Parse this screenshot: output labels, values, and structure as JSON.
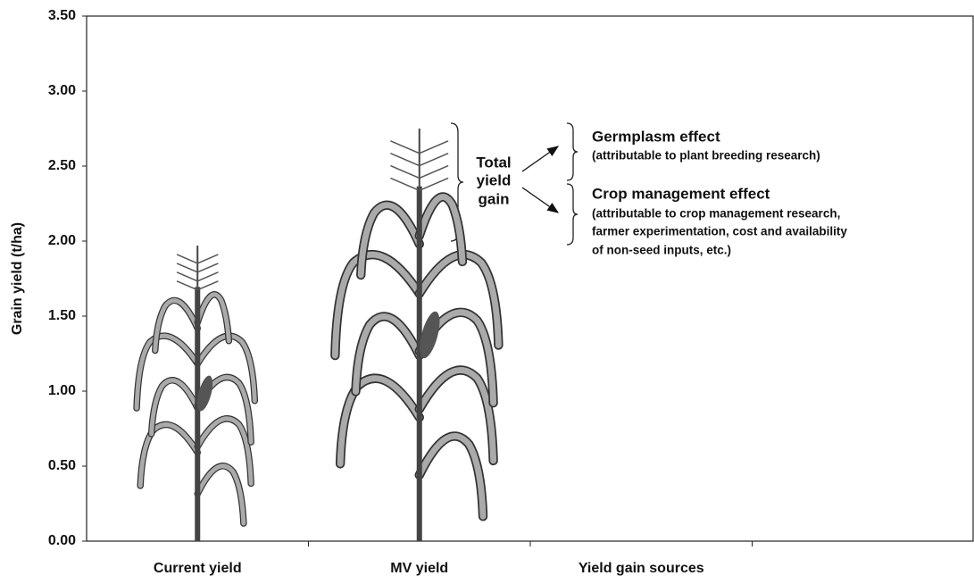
{
  "chart_data": {
    "type": "bar",
    "y_label": "Grain yield (t/ha)",
    "categories": [
      "Current yield",
      "MV yield",
      "Yield gain sources",
      null
    ],
    "values": [
      1.97,
      2.75,
      null,
      null
    ],
    "ylim": [
      0,
      3.5
    ],
    "yticks": [
      {
        "value": 0,
        "label": "0.00"
      },
      {
        "value": 0.5,
        "label": "0.50"
      },
      {
        "value": 1,
        "label": "1.00"
      },
      {
        "value": 1.5,
        "label": "1.50"
      },
      {
        "value": 2,
        "label": "2.00"
      },
      {
        "value": 2.5,
        "label": "2.50"
      },
      {
        "value": 3,
        "label": "3.00"
      },
      {
        "value": 3.5,
        "label": "3.50"
      }
    ],
    "annotations": {
      "total_gain": [
        "Total",
        "yield",
        "gain"
      ],
      "germplasm": {
        "title": "Germplasm effect",
        "note": "(attributable to plant breeding research)"
      },
      "crop_management": {
        "title": "Crop management effect",
        "note": [
          "(attributable to crop management research,",
          "farmer experimentation, cost and availability",
          "of non-seed inputs, etc.)"
        ]
      }
    }
  }
}
